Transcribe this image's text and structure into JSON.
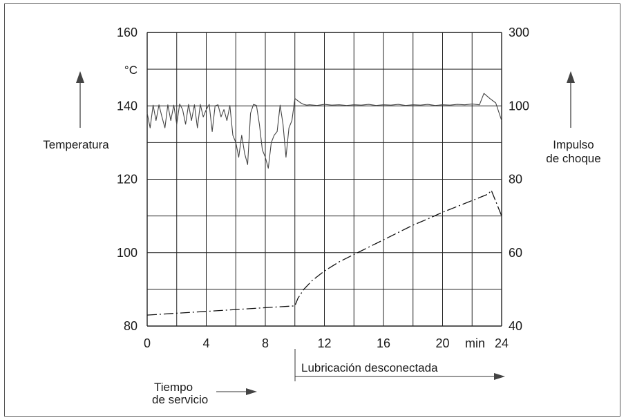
{
  "chart_data": {
    "type": "line",
    "x_ticks": [
      0,
      4,
      8,
      12,
      16,
      20,
      24
    ],
    "x_unit": "min",
    "xlim": [
      0,
      24
    ],
    "left_axis": {
      "label": "Temperatura",
      "unit": "°C",
      "ticks": [
        80,
        100,
        120,
        140,
        160
      ],
      "ylim": [
        80,
        160
      ]
    },
    "right_axis": {
      "label_line1": "Impulso",
      "label_line2": "de choque",
      "ticks": [
        40,
        60,
        80,
        100,
        300
      ],
      "ylim": [
        40,
        300
      ]
    },
    "grid": true,
    "annotations": {
      "lubrication": "Lubricación desconectada",
      "service_line1": "Tiempo",
      "service_line2": "de servicio"
    },
    "series": [
      {
        "axis": "right",
        "style": "solid",
        "x": [
          0,
          0.2,
          0.4,
          0.6,
          0.8,
          1.0,
          1.2,
          1.4,
          1.6,
          1.8,
          2.0,
          2.2,
          2.4,
          2.6,
          2.8,
          3.0,
          3.2,
          3.4,
          3.6,
          3.8,
          4.0,
          4.2,
          4.4,
          4.6,
          4.8,
          5.0,
          5.2,
          5.4,
          5.6,
          5.8,
          6.0,
          6.2,
          6.4,
          6.6,
          6.8,
          7.0,
          7.2,
          7.4,
          7.6,
          7.8,
          8.0,
          8.2,
          8.4,
          8.6,
          8.8,
          9.0,
          9.2,
          9.4,
          9.6,
          9.8,
          10.0,
          10.2,
          10.4,
          10.6,
          10.8,
          11.0,
          11.5,
          12.0,
          12.5,
          13.0,
          13.5,
          14.0,
          14.5,
          15.0,
          15.5,
          16.0,
          16.5,
          17.0,
          17.5,
          18.0,
          18.5,
          19.0,
          19.5,
          20.0,
          20.5,
          21.0,
          21.5,
          22.0,
          22.5,
          22.8,
          23.2,
          23.6,
          24.0
        ],
        "y": [
          98,
          94,
          102,
          96,
          103,
          97,
          94,
          103,
          96,
          102,
          95,
          105,
          99,
          95,
          104,
          96,
          103,
          94,
          104,
          97,
          99,
          104,
          93,
          100,
          103,
          97,
          99,
          96,
          101,
          92,
          90,
          86,
          92,
          87,
          84,
          98,
          104,
          101,
          95,
          88,
          86,
          83,
          90,
          92,
          93,
          102,
          95,
          86,
          94,
          96,
          120,
          114,
          108,
          104,
          102,
          103,
          101,
          104,
          102,
          103,
          101,
          103,
          102,
          104,
          101,
          103,
          102,
          104,
          101,
          103,
          102,
          104,
          101,
          103,
          102,
          104,
          103,
          105,
          103,
          134,
          120,
          108,
          96
        ]
      },
      {
        "axis": "left",
        "style": "dash-dot",
        "x": [
          0,
          2,
          4,
          6,
          8,
          10,
          10.2,
          10.6,
          11.2,
          12,
          13,
          14,
          15,
          16,
          17,
          18,
          19,
          20,
          21,
          22,
          23.1,
          23.3,
          23.6,
          24
        ],
        "y": [
          83,
          83.5,
          84,
          84.5,
          85,
          85.5,
          87.5,
          90,
          92.5,
          95,
          97.5,
          99.5,
          101.5,
          103.5,
          105.5,
          107.5,
          109.2,
          111,
          112.6,
          114.2,
          116,
          117,
          114,
          110
        ]
      }
    ]
  }
}
